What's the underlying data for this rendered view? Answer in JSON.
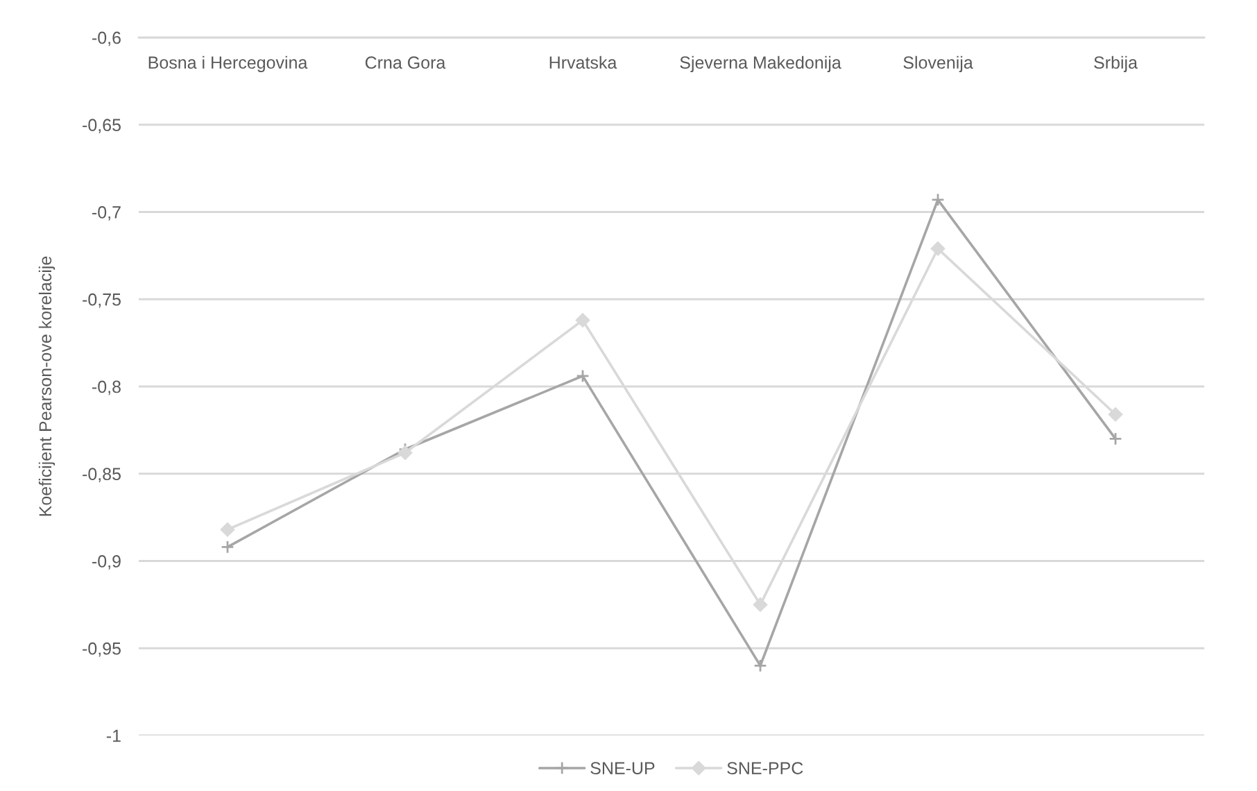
{
  "chart_data": {
    "type": "line",
    "ylabel": "Koeficijent Pearson-ove korelacije",
    "categories": [
      "Bosna i Hercegovina",
      "Crna Gora",
      "Hrvatska",
      "Sjeverna Makedonija",
      "Slovenija",
      "Srbija"
    ],
    "series": [
      {
        "name": "SNE-UP",
        "color": "#a6a6a6",
        "marker": "cross",
        "values": [
          -0.892,
          -0.836,
          -0.794,
          -0.96,
          -0.693,
          -0.83
        ]
      },
      {
        "name": "SNE-PPC",
        "color": "#d9d9d9",
        "marker": "diamond",
        "values": [
          -0.882,
          -0.838,
          -0.762,
          -0.925,
          -0.721,
          -0.816
        ]
      }
    ],
    "ylim": [
      -1,
      -0.6
    ],
    "yticks": [
      {
        "value": -1,
        "label": "-1"
      },
      {
        "value": -0.95,
        "label": "-0,95"
      },
      {
        "value": -0.9,
        "label": "-0,9"
      },
      {
        "value": -0.85,
        "label": "-0,85"
      },
      {
        "value": -0.8,
        "label": "-0,8"
      },
      {
        "value": -0.75,
        "label": "-0,75"
      },
      {
        "value": -0.7,
        "label": "-0,7"
      },
      {
        "value": -0.65,
        "label": "-0,65"
      },
      {
        "value": -0.6,
        "label": "-0,6"
      }
    ],
    "grid": "y",
    "legend": "bottom",
    "line_style": "solid"
  }
}
